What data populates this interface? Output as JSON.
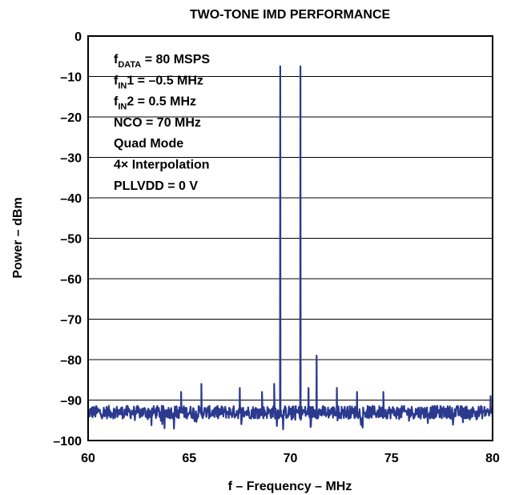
{
  "chart_data": {
    "type": "line",
    "title": "TWO-TONE IMD PERFORMANCE",
    "xlabel": "f – Frequency – MHz",
    "ylabel": "Power – dBm",
    "xlim": [
      60,
      80
    ],
    "ylim": [
      -100,
      0
    ],
    "xticks": [
      "60",
      "65",
      "70",
      "75",
      "80"
    ],
    "yticks": [
      "0",
      "–10",
      "–20",
      "–30",
      "–40",
      "–50",
      "–60",
      "–70",
      "–80",
      "–90",
      "–100"
    ],
    "ytick_values": [
      0,
      -10,
      -20,
      -30,
      -40,
      -50,
      -60,
      -70,
      -80,
      -90,
      -100
    ],
    "xtick_values": [
      60,
      65,
      70,
      75,
      80
    ],
    "grid": "horizontal",
    "line_color": "#2b3a8f",
    "noise_floor": -93,
    "series": [
      {
        "peaks": [
          {
            "x": 69.5,
            "y": -7.5
          },
          {
            "x": 70.5,
            "y": -7.5
          },
          {
            "x": 71.3,
            "y": -79
          },
          {
            "x": 69.2,
            "y": -86
          },
          {
            "x": 70.9,
            "y": -87
          },
          {
            "x": 64.6,
            "y": -88
          },
          {
            "x": 65.6,
            "y": -86
          },
          {
            "x": 67.5,
            "y": -87
          },
          {
            "x": 68.6,
            "y": -88
          },
          {
            "x": 72.3,
            "y": -87
          },
          {
            "x": 73.3,
            "y": -88
          },
          {
            "x": 74.6,
            "y": -88
          },
          {
            "x": 79.9,
            "y": -89
          }
        ]
      }
    ],
    "annotations": [
      {
        "main": "f",
        "sub": "DATA",
        "rest": " = 80 MSPS"
      },
      {
        "main": "f",
        "sub": "IN",
        "rest": "1 = –0.5 MHz"
      },
      {
        "main": "f",
        "sub": "IN",
        "rest": "2 = 0.5 MHz"
      },
      {
        "main": "NCO = 70 MHz",
        "sub": "",
        "rest": ""
      },
      {
        "main": "Quad Mode",
        "sub": "",
        "rest": ""
      },
      {
        "main": "4× Interpolation",
        "sub": "",
        "rest": ""
      },
      {
        "main": "PLLVDD = 0 V",
        "sub": "",
        "rest": ""
      }
    ]
  }
}
